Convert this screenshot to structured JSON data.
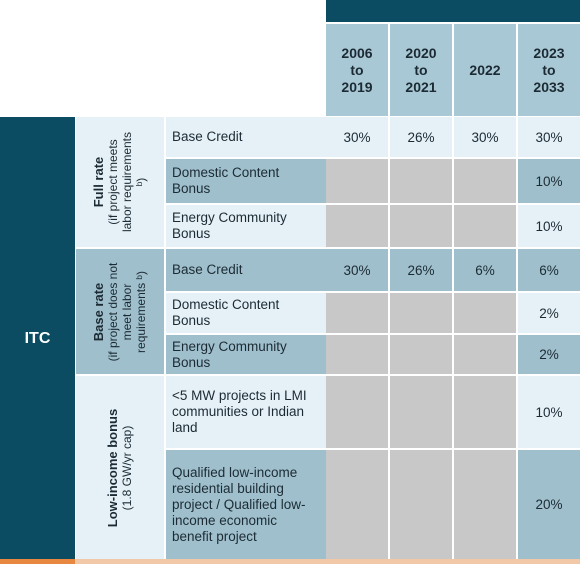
{
  "columns": [
    {
      "label": "2006 to 2019"
    },
    {
      "label": "2020 to 2021"
    },
    {
      "label": "2022"
    },
    {
      "label": "2023 to 2033"
    }
  ],
  "row_header": "ITC",
  "groups": [
    {
      "title": "Full rate",
      "subtitle": "(if project meets labor requirements ᵇ)"
    },
    {
      "title": "Base rate",
      "subtitle": "(if project does not meet labor requirements ᵇ)"
    },
    {
      "title": "Low-income bonus",
      "subtitle": "(1.8 GW/yr cap)"
    }
  ],
  "rows": [
    {
      "label": "Base Credit",
      "values": [
        "30%",
        "26%",
        "30%",
        "30%"
      ]
    },
    {
      "label": "Domestic Content Bonus",
      "values": [
        "",
        "",
        "",
        "10%"
      ]
    },
    {
      "label": "Energy Community Bonus",
      "values": [
        "",
        "",
        "",
        "10%"
      ]
    },
    {
      "label": "Base Credit",
      "values": [
        "30%",
        "26%",
        "6%",
        "6%"
      ]
    },
    {
      "label": "Domestic Content Bonus",
      "values": [
        "",
        "",
        "",
        "2%"
      ]
    },
    {
      "label": "Energy Community Bonus",
      "values": [
        "",
        "",
        "",
        "2%"
      ]
    },
    {
      "label": "<5 MW projects in LMI communities or Indian land",
      "values": [
        "",
        "",
        "",
        "10%"
      ]
    },
    {
      "label": "Qualified low-income residential building project / Qualified low-income economic benefit project",
      "values": [
        "",
        "",
        "",
        "20%"
      ]
    }
  ]
}
